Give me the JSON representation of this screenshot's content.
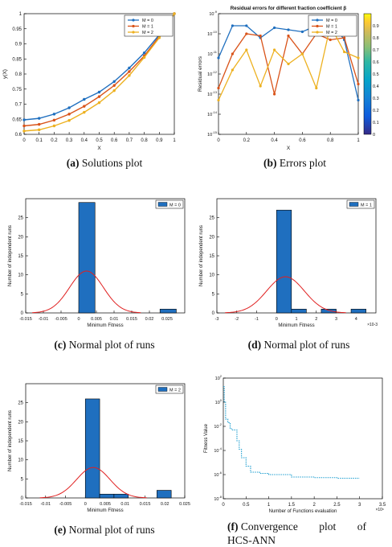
{
  "colors": {
    "m0": "#1f6fbf",
    "m1": "#d95319",
    "m2": "#edb120",
    "bar": "#1f6fbf",
    "curve": "#e02020",
    "conv": "#1f9fd0"
  },
  "captions": {
    "a": {
      "label": "(a)",
      "text": "Solutions plot"
    },
    "b": {
      "label": "(b)",
      "text": "Errors plot"
    },
    "c": {
      "label": "(c)",
      "text": "Normal plot of runs"
    },
    "d": {
      "label": "(d)",
      "text": "Normal plot of runs"
    },
    "e": {
      "label": "(e)",
      "text": "Normal plot of runs"
    },
    "f": {
      "label": "(f)",
      "line1a": "Convergence",
      "line1b": "plot",
      "line1c": "of",
      "line2": "HCS-ANN"
    }
  },
  "chart_data": [
    {
      "id": "a",
      "type": "line",
      "title": "",
      "xlabel": "X",
      "ylabel": "y(X)",
      "xlim": [
        0,
        1
      ],
      "ylim": [
        0.6,
        1.0
      ],
      "xticks": [
        "0",
        "0.1",
        "0.2",
        "0.3",
        "0.4",
        "0.5",
        "0.6",
        "0.7",
        "0.8",
        "0.9",
        "1"
      ],
      "yticks": [
        "0.6",
        "0.65",
        "0.7",
        "0.75",
        "0.8",
        "0.85",
        "0.9",
        "0.95",
        "1"
      ],
      "legend_position": "top-right",
      "x": [
        0,
        0.1,
        0.2,
        0.3,
        0.4,
        0.5,
        0.6,
        0.7,
        0.8,
        0.9,
        1.0
      ],
      "series": [
        {
          "name": "M = 0",
          "values": [
            0.648,
            0.653,
            0.667,
            0.688,
            0.716,
            0.74,
            0.775,
            0.82,
            0.87,
            0.93,
            1.0
          ]
        },
        {
          "name": "M = 1",
          "values": [
            0.628,
            0.633,
            0.647,
            0.667,
            0.693,
            0.725,
            0.762,
            0.808,
            0.86,
            0.925,
            1.0
          ]
        },
        {
          "name": "M = 2",
          "values": [
            0.611,
            0.615,
            0.628,
            0.646,
            0.673,
            0.705,
            0.745,
            0.795,
            0.855,
            0.92,
            1.0
          ]
        }
      ]
    },
    {
      "id": "b",
      "type": "line",
      "title": "Residual errors for different fraction coefficient β",
      "xlabel": "X",
      "ylabel": "Residual errors",
      "xlim": [
        0,
        1
      ],
      "ylim_exp": [
        -15,
        -9
      ],
      "yscale": "log",
      "xticks": [
        "0",
        "0.2",
        "0.4",
        "0.6",
        "0.8",
        "1"
      ],
      "yticks": [
        "10-15",
        "10-14",
        "10-13",
        "10-12",
        "10-11",
        "10-10",
        "10-9"
      ],
      "legend_position": "top-right",
      "colorbar": {
        "ticks": [
          "0",
          "0.1",
          "0.2",
          "0.3",
          "0.4",
          "0.5",
          "0.6",
          "0.7",
          "0.8",
          "0.9"
        ]
      },
      "x": [
        0,
        0.1,
        0.2,
        0.3,
        0.4,
        0.5,
        0.6,
        0.7,
        0.8,
        0.9,
        1.0
      ],
      "series_log10": [
        {
          "name": "M = 0",
          "values": [
            -11.2,
            -9.6,
            -9.6,
            -10.2,
            -9.7,
            -9.8,
            -9.9,
            -9.6,
            -9.3,
            -10.3,
            -13.3
          ]
        },
        {
          "name": "M = 1",
          "values": [
            -12.7,
            -11.0,
            -10.0,
            -10.1,
            -13.0,
            -10.1,
            -11.0,
            -10.0,
            -10.3,
            -10.2,
            -12.5
          ]
        },
        {
          "name": "M = 2",
          "values": [
            -13.3,
            -11.8,
            -10.8,
            -12.6,
            -10.8,
            -11.5,
            -11.0,
            -12.7,
            -9.6,
            -10.9,
            -11.2
          ]
        }
      ]
    },
    {
      "id": "c",
      "type": "bar",
      "title": "",
      "xlabel": "Minimum Fitness",
      "ylabel": "Number of independent runs",
      "xlim": [
        -0.015,
        0.03
      ],
      "ylim": [
        0,
        30
      ],
      "xticks": [
        "-0.015",
        "-0.01",
        "-0.005",
        "0",
        "0.005",
        "0.01",
        "0.015",
        "0.02",
        "0.025"
      ],
      "yticks": [
        "0",
        "5",
        "10",
        "15",
        "20",
        "25"
      ],
      "legend": "M = 0",
      "legend_position": "top-right",
      "bins": [
        [
          0,
          0.0046,
          29
        ],
        [
          0.0046,
          0.0092,
          0
        ],
        [
          0.0092,
          0.0138,
          0
        ],
        [
          0.0138,
          0.0184,
          0
        ],
        [
          0.0184,
          0.023,
          0
        ],
        [
          0.023,
          0.0276,
          1
        ]
      ],
      "normal_fit": {
        "mean": 0.0022,
        "peak": 11,
        "sd": 0.0048
      }
    },
    {
      "id": "d",
      "type": "bar",
      "title": "",
      "xlabel": "Minimum Fitness",
      "ylabel": "Number of independent runs",
      "xlim": [
        -3,
        5
      ],
      "ylim": [
        0,
        30
      ],
      "x_scale_note": "×10-3",
      "xticks": [
        "-3",
        "-2",
        "-1",
        "0",
        "1",
        "2",
        "3",
        "4"
      ],
      "yticks": [
        "0",
        "5",
        "10",
        "15",
        "20",
        "25"
      ],
      "legend": "M = 1",
      "legend_position": "top-right",
      "bins": [
        [
          0,
          0.75,
          27
        ],
        [
          0.75,
          1.5,
          1
        ],
        [
          1.5,
          2.25,
          0
        ],
        [
          2.25,
          3.0,
          1
        ],
        [
          3.0,
          3.75,
          0
        ],
        [
          3.75,
          4.5,
          1
        ]
      ],
      "normal_fit": {
        "mean": 0.45,
        "peak": 9.5,
        "sd": 0.95
      }
    },
    {
      "id": "e",
      "type": "bar",
      "title": "",
      "xlabel": "Minimum Fitness",
      "ylabel": "Number of independent runs",
      "xlim": [
        -0.015,
        0.025
      ],
      "ylim": [
        0,
        30
      ],
      "xticks": [
        "-0.015",
        "-0.01",
        "-0.005",
        "0",
        "0.005",
        "0.01",
        "0.015",
        "0.02",
        "0.025"
      ],
      "yticks": [
        "0",
        "5",
        "10",
        "15",
        "20",
        "25"
      ],
      "legend": "M = 2",
      "legend_position": "top-right",
      "bins": [
        [
          0,
          0.0036,
          26
        ],
        [
          0.0036,
          0.0072,
          1
        ],
        [
          0.0072,
          0.0108,
          1
        ],
        [
          0.0108,
          0.0144,
          0
        ],
        [
          0.0144,
          0.018,
          0
        ],
        [
          0.018,
          0.0216,
          2
        ]
      ],
      "normal_fit": {
        "mean": 0.002,
        "peak": 8,
        "sd": 0.0042
      }
    },
    {
      "id": "f",
      "type": "line",
      "title": "",
      "xlabel": "Number of Functions evaluation",
      "ylabel": "Fitness Value",
      "xlim": [
        0,
        3.5
      ],
      "x_scale_note": "×10⁶",
      "yscale": "log",
      "ylim_exp": [
        -8,
        2
      ],
      "xticks": [
        "0",
        "0.5",
        "1",
        "1.5",
        "2",
        "2.5",
        "3",
        "3.5"
      ],
      "yticks": [
        "10-8",
        "10-6",
        "10-4",
        "10-2",
        "100",
        "102"
      ],
      "x": [
        0,
        0.02,
        0.05,
        0.1,
        0.15,
        0.2,
        0.3,
        0.35,
        0.4,
        0.5,
        0.6,
        0.8,
        1.0,
        1.5,
        2.0,
        2.5,
        3.0
      ],
      "values_log10": [
        1.3,
        0.0,
        -1.4,
        -1.7,
        -2.2,
        -2.3,
        -3.2,
        -3.9,
        -4.6,
        -5.3,
        -5.8,
        -5.9,
        -6.0,
        -6.2,
        -6.25,
        -6.3,
        -6.3
      ]
    }
  ]
}
